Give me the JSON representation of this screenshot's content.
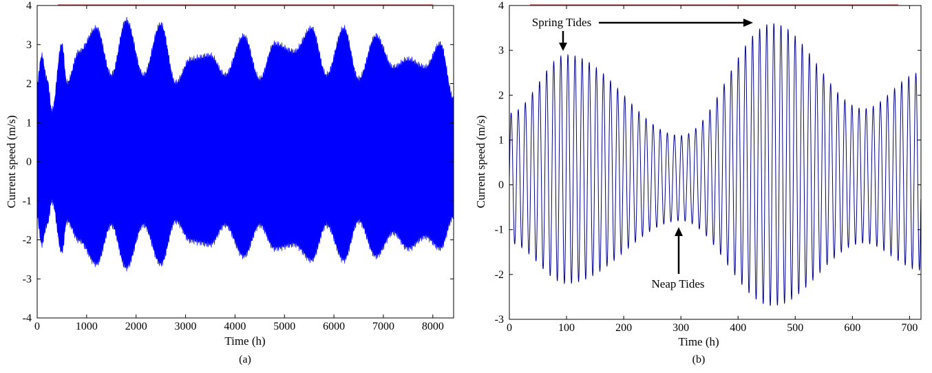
{
  "chart_data": [
    {
      "panel_label": "(a)",
      "type": "line",
      "xlabel": "Time (h)",
      "ylabel": "Current speed (m/s)",
      "xlim": [
        0,
        8420
      ],
      "ylim": [
        -4,
        4
      ],
      "xticks": [
        0,
        1000,
        2000,
        3000,
        4000,
        5000,
        6000,
        7000,
        8000
      ],
      "yticks": [
        -4,
        -3,
        -2,
        -1,
        0,
        1,
        2,
        3,
        4
      ],
      "grid": false,
      "series": [
        {
          "color": "#0000ff",
          "filled_envelope": true,
          "envelope_x": [
            0,
            90,
            200,
            300,
            500,
            600,
            850,
            1200,
            1500,
            1800,
            2150,
            2500,
            2800,
            3100,
            3500,
            3800,
            4180,
            4500,
            4800,
            5200,
            5550,
            5850,
            6200,
            6500,
            6850,
            7200,
            7500,
            7850,
            8150,
            8420
          ],
          "envelope_upper": [
            2.0,
            2.7,
            2.1,
            1.3,
            3.0,
            2.0,
            2.8,
            3.4,
            2.2,
            3.6,
            2.2,
            3.5,
            2.0,
            2.6,
            2.7,
            2.2,
            3.2,
            2.1,
            3.0,
            2.8,
            3.4,
            2.2,
            3.4,
            2.1,
            3.2,
            2.4,
            2.6,
            2.4,
            3.0,
            1.6
          ],
          "envelope_lower": [
            -1.4,
            -2.1,
            -1.6,
            -1.0,
            -2.3,
            -1.5,
            -2.0,
            -2.6,
            -1.6,
            -2.7,
            -1.6,
            -2.6,
            -1.5,
            -2.0,
            -2.1,
            -1.6,
            -2.4,
            -1.6,
            -2.2,
            -2.1,
            -2.5,
            -1.6,
            -2.5,
            -1.5,
            -2.4,
            -1.8,
            -2.2,
            -1.9,
            -2.2,
            -1.4
          ]
        }
      ]
    },
    {
      "panel_label": "(b)",
      "type": "line",
      "xlabel": "Time (h)",
      "ylabel": "Current speed (m/s)",
      "xlim": [
        0,
        720
      ],
      "ylim": [
        -3,
        4
      ],
      "xticks": [
        0,
        100,
        200,
        300,
        400,
        500,
        600,
        700
      ],
      "yticks": [
        -3,
        -2,
        -1,
        0,
        1,
        2,
        3,
        4
      ],
      "grid": false,
      "series": [
        {
          "color": "#00008b",
          "oscillation_period_h": 12.42,
          "envelope_x": [
            0,
            100,
            300,
            460,
            620,
            720
          ],
          "envelope_upper": [
            1.6,
            2.9,
            1.1,
            3.6,
            1.7,
            2.5
          ],
          "envelope_lower": [
            -1.3,
            -2.2,
            -0.8,
            -2.7,
            -1.3,
            -1.9
          ]
        }
      ],
      "annotations": [
        {
          "text": "Spring Tides",
          "x": 95,
          "y": 3.55
        },
        {
          "text": "Neap Tides",
          "x": 300,
          "y": -2.2
        }
      ]
    }
  ]
}
